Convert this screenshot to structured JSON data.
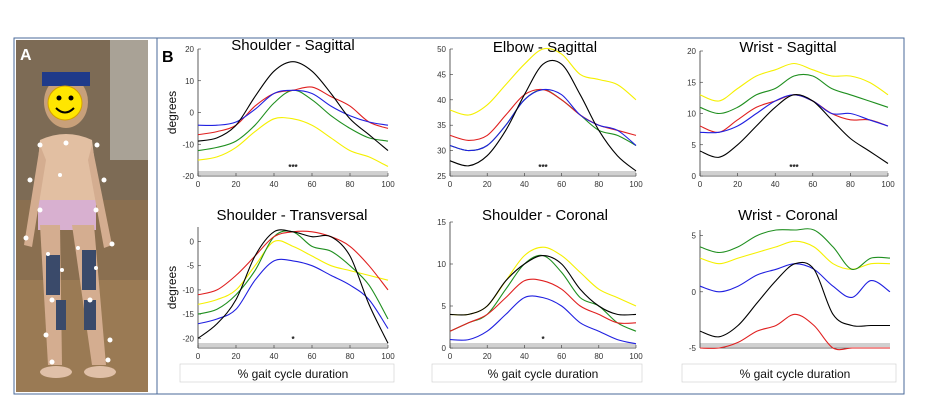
{
  "panel_labels": {
    "photo": "A",
    "charts": "B"
  },
  "emoji_face": "☺",
  "colors": {
    "yellow": "#f5f000",
    "green": "#1f8f1f",
    "red": "#e02020",
    "blue": "#2020e0",
    "black": "#000000",
    "frame": "#4a6a9a"
  },
  "chart_data": [
    {
      "type": "line",
      "title": "Shoulder - Sagittal",
      "ylabel": "degrees",
      "xlabel": "",
      "xlim": [
        0,
        100
      ],
      "ylim": [
        -20,
        20
      ],
      "xticks": [
        "0",
        "20",
        "40",
        "60",
        "80",
        "100"
      ],
      "yticks": [
        "20",
        "10",
        "0",
        "-10",
        "-20"
      ],
      "significance": "***",
      "x": [
        0,
        10,
        20,
        30,
        40,
        50,
        60,
        70,
        80,
        90,
        100
      ],
      "series": [
        {
          "color": "yellow",
          "values": [
            -15,
            -14,
            -11,
            -6,
            -2,
            -2,
            -4,
            -8,
            -12,
            -14,
            -17
          ]
        },
        {
          "color": "green",
          "values": [
            -12,
            -11,
            -9,
            -4,
            3,
            7,
            4,
            -1,
            -5,
            -8,
            -9
          ]
        },
        {
          "color": "red",
          "values": [
            -7,
            -6,
            -4,
            2,
            6,
            7,
            8,
            5,
            2,
            -3,
            -5
          ]
        },
        {
          "color": "blue",
          "values": [
            -4,
            -4,
            -3,
            1,
            6,
            7,
            6,
            2,
            -1,
            -3,
            -4
          ]
        },
        {
          "color": "black",
          "values": [
            -9,
            -8,
            -4,
            5,
            13,
            16,
            13,
            6,
            -2,
            -7,
            -12
          ]
        }
      ]
    },
    {
      "type": "line",
      "title": "Elbow - Sagittal",
      "ylabel": "",
      "xlabel": "",
      "xlim": [
        0,
        100
      ],
      "ylim": [
        25,
        50
      ],
      "xticks": [
        "0",
        "20",
        "40",
        "60",
        "80",
        "100"
      ],
      "yticks": [
        "50",
        "45",
        "40",
        "35",
        "30",
        "25"
      ],
      "significance": "***",
      "x": [
        0,
        10,
        20,
        30,
        40,
        50,
        60,
        70,
        80,
        90,
        100
      ],
      "series": [
        {
          "color": "yellow",
          "values": [
            38,
            37,
            39,
            43,
            47,
            50,
            49,
            45,
            44,
            43,
            40
          ]
        },
        {
          "color": "green",
          "values": [
            31,
            30,
            31,
            35,
            40,
            42,
            40,
            37,
            34,
            33,
            31
          ]
        },
        {
          "color": "red",
          "values": [
            33,
            32,
            33,
            37,
            41,
            42,
            40,
            37,
            35,
            34,
            33
          ]
        },
        {
          "color": "blue",
          "values": [
            31,
            30,
            31,
            35,
            40,
            42,
            41,
            37,
            35,
            34,
            31
          ]
        },
        {
          "color": "black",
          "values": [
            28,
            27,
            29,
            34,
            41,
            47,
            47,
            41,
            34,
            29,
            26
          ]
        }
      ]
    },
    {
      "type": "line",
      "title": "Wrist - Sagittal",
      "ylabel": "",
      "xlabel": "",
      "xlim": [
        0,
        100
      ],
      "ylim": [
        0,
        20
      ],
      "xticks": [
        "0",
        "20",
        "40",
        "60",
        "80",
        "100"
      ],
      "yticks": [
        "20",
        "15",
        "10",
        "5",
        "0"
      ],
      "significance": "***",
      "x": [
        0,
        10,
        20,
        30,
        40,
        50,
        60,
        70,
        80,
        90,
        100
      ],
      "series": [
        {
          "color": "yellow",
          "values": [
            13,
            12,
            14,
            16,
            17,
            18,
            17,
            16,
            16,
            15,
            13
          ]
        },
        {
          "color": "green",
          "values": [
            11,
            10,
            11,
            13,
            14,
            16,
            16,
            14,
            13,
            12,
            11
          ]
        },
        {
          "color": "red",
          "values": [
            8,
            7,
            9,
            11,
            12,
            13,
            12,
            10,
            9,
            9,
            8
          ]
        },
        {
          "color": "blue",
          "values": [
            7,
            7,
            8,
            10,
            12,
            13,
            12,
            10,
            10,
            9,
            8
          ]
        },
        {
          "color": "black",
          "values": [
            4,
            3,
            5,
            8,
            11,
            13,
            12,
            9,
            6,
            4,
            2
          ]
        }
      ]
    },
    {
      "type": "line",
      "title": "Shoulder - Transversal",
      "ylabel": "degrees",
      "xlabel": "% gait cycle duration",
      "xlim": [
        0,
        100
      ],
      "ylim": [
        -22,
        3
      ],
      "xticks": [
        "0",
        "20",
        "40",
        "60",
        "80",
        "100"
      ],
      "yticks": [
        "0",
        "-5",
        "-10",
        "-15",
        "-20"
      ],
      "significance": "*",
      "x": [
        0,
        10,
        20,
        30,
        40,
        50,
        60,
        70,
        80,
        90,
        100
      ],
      "series": [
        {
          "color": "yellow",
          "values": [
            -13,
            -12,
            -10,
            -5,
            0,
            -1,
            -3,
            -5,
            -6,
            -7,
            -8
          ]
        },
        {
          "color": "green",
          "values": [
            -15,
            -14,
            -11,
            -6,
            1,
            2,
            -1,
            -2,
            -5,
            -9,
            -16
          ]
        },
        {
          "color": "red",
          "values": [
            -11,
            -10,
            -7,
            -3,
            1,
            2,
            2,
            1,
            -1,
            -5,
            -10
          ]
        },
        {
          "color": "blue",
          "values": [
            -17,
            -16,
            -14,
            -8,
            -4,
            -4,
            -5,
            -7,
            -9,
            -12,
            -18
          ]
        },
        {
          "color": "black",
          "values": [
            -20,
            -17,
            -12,
            -3,
            2,
            2,
            1,
            1,
            -3,
            -13,
            -21
          ]
        }
      ]
    },
    {
      "type": "line",
      "title": "Shoulder - Coronal",
      "ylabel": "",
      "xlabel": "% gait cycle duration",
      "xlim": [
        0,
        100
      ],
      "ylim": [
        0,
        15
      ],
      "xticks": [
        "0",
        "20",
        "40",
        "60",
        "80",
        "100"
      ],
      "yticks": [
        "15",
        "10",
        "5",
        "0"
      ],
      "significance": "*",
      "x": [
        0,
        10,
        20,
        30,
        40,
        50,
        60,
        70,
        80,
        90,
        100
      ],
      "series": [
        {
          "color": "yellow",
          "values": [
            4,
            4,
            5,
            8,
            11,
            12,
            11,
            9,
            7,
            6,
            5
          ]
        },
        {
          "color": "green",
          "values": [
            2,
            3,
            4,
            7,
            10,
            11,
            9,
            6,
            5,
            3,
            2
          ]
        },
        {
          "color": "red",
          "values": [
            2,
            3,
            4,
            6,
            8,
            8,
            7,
            5,
            4,
            3,
            3
          ]
        },
        {
          "color": "blue",
          "values": [
            1,
            1,
            2,
            4,
            6,
            6,
            5,
            3,
            2,
            1,
            0.5
          ]
        },
        {
          "color": "black",
          "values": [
            4,
            4,
            5,
            8,
            10,
            11,
            10,
            7,
            5,
            4,
            4
          ]
        }
      ]
    },
    {
      "type": "line",
      "title": "Wrist - Coronal",
      "ylabel": "",
      "xlabel": "% gait cycle duration",
      "xlim": [
        0,
        100
      ],
      "ylim": [
        -5,
        5.5
      ],
      "xticks": [],
      "yticks": [
        "5",
        "0",
        "-5"
      ],
      "significance": "",
      "x": [
        0,
        10,
        20,
        30,
        40,
        50,
        60,
        70,
        80,
        90,
        100
      ],
      "series": [
        {
          "color": "yellow",
          "values": [
            3,
            2.5,
            3,
            3.5,
            4,
            4.5,
            4,
            2.5,
            2,
            2.5,
            2.5
          ]
        },
        {
          "color": "green",
          "values": [
            4,
            3.5,
            4,
            5,
            5.5,
            5.5,
            5.5,
            4,
            2,
            3,
            3
          ]
        },
        {
          "color": "blue",
          "values": [
            0.5,
            0,
            0.5,
            1.5,
            2,
            2.5,
            2,
            0.5,
            -0.5,
            1,
            0
          ]
        },
        {
          "color": "black",
          "values": [
            -3.5,
            -4,
            -3,
            -1,
            1,
            2.5,
            2,
            -2,
            -3,
            -3,
            -3
          ]
        },
        {
          "color": "red",
          "values": [
            -5,
            -5,
            -4.5,
            -3.5,
            -3,
            -2,
            -3,
            -5,
            -5,
            -5,
            -5
          ]
        }
      ]
    }
  ]
}
